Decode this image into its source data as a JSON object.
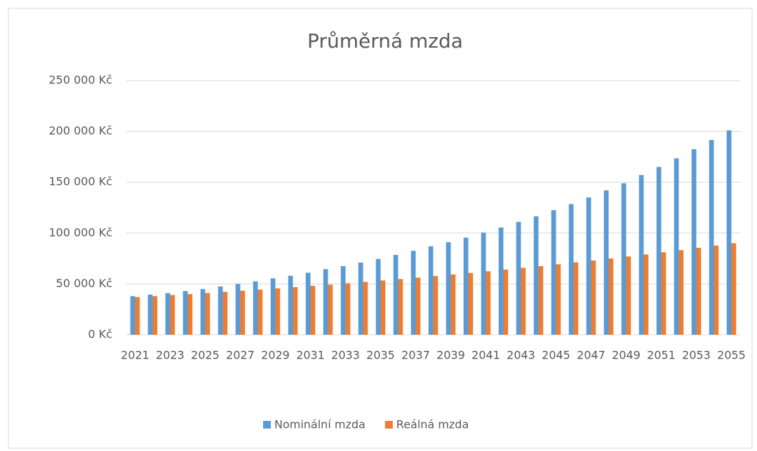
{
  "chart_data": {
    "type": "bar",
    "title": "Průměrná mzda",
    "categories": [
      "2021",
      null,
      "2023",
      null,
      "2025",
      null,
      "2027",
      null,
      "2029",
      null,
      "2031",
      null,
      "2033",
      null,
      "2035",
      null,
      "2037",
      null,
      "2039",
      null,
      "2041",
      null,
      "2043",
      null,
      "2045",
      null,
      "2047",
      null,
      "2049",
      null,
      "2051",
      null,
      "2053",
      null,
      "2055"
    ],
    "series": [
      {
        "name": "Nominální mzda",
        "color": "#5b9bd5",
        "values": [
          38000,
          39500,
          41000,
          43000,
          45000,
          47500,
          50000,
          52500,
          55500,
          58000,
          61000,
          64500,
          67500,
          71000,
          74500,
          78500,
          82500,
          87000,
          91000,
          95500,
          100500,
          105500,
          111000,
          116500,
          122500,
          128500,
          135000,
          142000,
          149000,
          157000,
          165000,
          173500,
          182500,
          191500,
          201000
        ]
      },
      {
        "name": "Reálná mzda",
        "color": "#ed7d31",
        "values": [
          37000,
          38000,
          39000,
          40000,
          41100,
          42200,
          43300,
          44400,
          45600,
          46800,
          48100,
          49300,
          50600,
          52000,
          53400,
          54800,
          56200,
          57700,
          59300,
          60800,
          62400,
          64100,
          65800,
          67500,
          69300,
          71200,
          73000,
          75000,
          77000,
          79000,
          81100,
          83200,
          85500,
          87700,
          90000
        ]
      }
    ],
    "ylim": [
      0,
      250000
    ],
    "yticks": [
      {
        "value": 0,
        "label": "0 Kč"
      },
      {
        "value": 50000,
        "label": "50 000 Kč"
      },
      {
        "value": 100000,
        "label": "100 000 Kč"
      },
      {
        "value": 150000,
        "label": "150 000 Kč"
      },
      {
        "value": 200000,
        "label": "200 000 Kč"
      },
      {
        "value": 250000,
        "label": "250 000 Kč"
      }
    ],
    "grid": true,
    "legend": "bottom"
  }
}
